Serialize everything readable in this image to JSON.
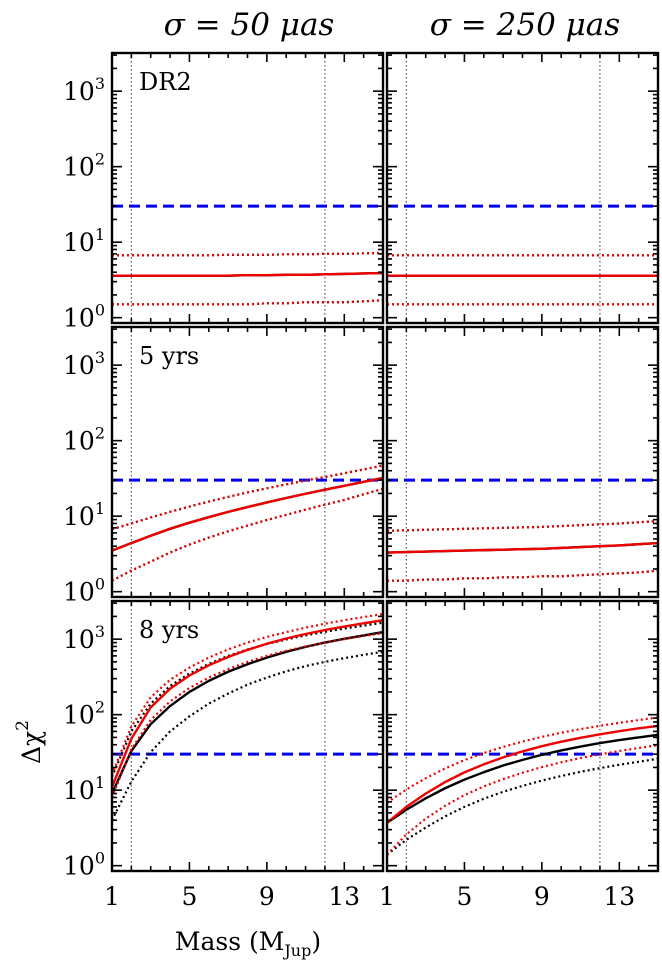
{
  "column_titles": [
    "σ = 50 μas",
    "σ = 250 μas"
  ],
  "xlabel": "Mass (M",
  "xlabel_sub": "Jup",
  "xlabel_close": ")",
  "ylabel": "Δχ",
  "ylabel_sup": "2",
  "chart_data": {
    "type": "line",
    "layout": "3x2 grid of panels sharing axes",
    "x_scale": "linear",
    "y_scale": "log",
    "xlim": [
      1,
      15
    ],
    "ylim": [
      0.85,
      3200
    ],
    "xticks": [
      1,
      5,
      9,
      13
    ],
    "xtick_labels": [
      "1",
      "5",
      "9",
      "13"
    ],
    "yticks": [
      1,
      10,
      100,
      1000
    ],
    "ytick_labels": [
      "10",
      "10",
      "10",
      "10"
    ],
    "ytick_exponents": [
      "0",
      "1",
      "2",
      "3"
    ],
    "threshold": {
      "y": 30,
      "color": "#0000ee",
      "style": "dashed"
    },
    "vlines": {
      "x": [
        2,
        12
      ],
      "color": "#555555",
      "style": "dotted"
    },
    "colors": {
      "black_series": "#000000",
      "red_series": "#ee0000"
    },
    "x": [
      1,
      2,
      3,
      4,
      5,
      6,
      7,
      8,
      9,
      10,
      11,
      12,
      13,
      14,
      15
    ],
    "panels": [
      {
        "row": 0,
        "col": 0,
        "label": "DR2",
        "black": {
          "median": [
            3.6,
            3.6,
            3.6,
            3.6,
            3.6,
            3.6,
            3.6,
            3.65,
            3.65,
            3.7,
            3.7,
            3.75,
            3.8,
            3.85,
            3.9
          ],
          "lower": [
            1.5,
            1.5,
            1.5,
            1.5,
            1.5,
            1.5,
            1.5,
            1.5,
            1.55,
            1.55,
            1.6,
            1.6,
            1.6,
            1.65,
            1.7
          ],
          "upper": [
            6.7,
            6.7,
            6.7,
            6.7,
            6.7,
            6.7,
            6.8,
            6.8,
            6.8,
            6.9,
            6.9,
            7.0,
            7.0,
            7.1,
            7.2
          ]
        },
        "red": {
          "median": [
            3.6,
            3.6,
            3.6,
            3.6,
            3.6,
            3.6,
            3.6,
            3.65,
            3.65,
            3.7,
            3.7,
            3.75,
            3.8,
            3.85,
            3.9
          ],
          "lower": [
            1.5,
            1.5,
            1.5,
            1.5,
            1.5,
            1.5,
            1.5,
            1.5,
            1.55,
            1.55,
            1.6,
            1.6,
            1.6,
            1.65,
            1.7
          ],
          "upper": [
            6.7,
            6.7,
            6.7,
            6.7,
            6.7,
            6.7,
            6.8,
            6.8,
            6.8,
            6.9,
            6.9,
            7.0,
            7.0,
            7.1,
            7.2
          ]
        }
      },
      {
        "row": 0,
        "col": 1,
        "label": "",
        "black": {
          "median": [
            3.6,
            3.6,
            3.6,
            3.6,
            3.6,
            3.6,
            3.6,
            3.6,
            3.6,
            3.6,
            3.6,
            3.6,
            3.6,
            3.6,
            3.6
          ],
          "lower": [
            1.5,
            1.5,
            1.5,
            1.5,
            1.5,
            1.5,
            1.5,
            1.5,
            1.5,
            1.5,
            1.5,
            1.5,
            1.5,
            1.5,
            1.5
          ],
          "upper": [
            6.7,
            6.7,
            6.7,
            6.7,
            6.7,
            6.7,
            6.7,
            6.7,
            6.7,
            6.7,
            6.7,
            6.7,
            6.7,
            6.7,
            6.7
          ]
        },
        "red": {
          "median": [
            3.6,
            3.6,
            3.6,
            3.6,
            3.6,
            3.6,
            3.6,
            3.6,
            3.6,
            3.6,
            3.6,
            3.6,
            3.6,
            3.6,
            3.6
          ],
          "lower": [
            1.5,
            1.5,
            1.5,
            1.5,
            1.5,
            1.5,
            1.5,
            1.5,
            1.5,
            1.5,
            1.5,
            1.5,
            1.5,
            1.5,
            1.5
          ],
          "upper": [
            6.7,
            6.7,
            6.7,
            6.7,
            6.7,
            6.7,
            6.7,
            6.7,
            6.7,
            6.7,
            6.7,
            6.7,
            6.7,
            6.7,
            6.7
          ]
        }
      },
      {
        "row": 1,
        "col": 0,
        "label": "5 yrs",
        "black": {
          "median": [
            3.5,
            4.4,
            5.5,
            6.8,
            8.2,
            9.7,
            11.4,
            13.2,
            15.2,
            17.4,
            19.8,
            22.4,
            25.2,
            28.5,
            32
          ],
          "lower": [
            1.4,
            1.9,
            2.5,
            3.3,
            4.2,
            5.2,
            6.3,
            7.5,
            8.9,
            10.4,
            12.2,
            14.2,
            16.4,
            19.5,
            23
          ],
          "upper": [
            6.7,
            8.0,
            9.6,
            11.4,
            13.4,
            15.6,
            18.0,
            20.6,
            23.4,
            26.4,
            29.6,
            33.0,
            37.0,
            41.5,
            47
          ]
        },
        "red": {
          "median": [
            3.5,
            4.4,
            5.5,
            6.8,
            8.2,
            9.7,
            11.4,
            13.2,
            15.2,
            17.4,
            19.8,
            22.4,
            25.2,
            28.5,
            32
          ],
          "lower": [
            1.4,
            1.9,
            2.5,
            3.3,
            4.2,
            5.2,
            6.3,
            7.5,
            8.9,
            10.4,
            12.2,
            14.2,
            16.4,
            19.5,
            23
          ],
          "upper": [
            6.7,
            8.0,
            9.6,
            11.4,
            13.4,
            15.6,
            18.0,
            20.6,
            23.4,
            26.4,
            29.6,
            33.0,
            37.0,
            41.5,
            47
          ]
        }
      },
      {
        "row": 1,
        "col": 1,
        "label": "",
        "black": {
          "median": [
            3.3,
            3.35,
            3.4,
            3.45,
            3.5,
            3.55,
            3.6,
            3.65,
            3.7,
            3.8,
            3.9,
            4.0,
            4.1,
            4.25,
            4.4
          ],
          "lower": [
            1.4,
            1.4,
            1.45,
            1.45,
            1.5,
            1.5,
            1.55,
            1.55,
            1.6,
            1.6,
            1.65,
            1.7,
            1.75,
            1.8,
            1.9
          ],
          "upper": [
            6.4,
            6.5,
            6.6,
            6.7,
            6.8,
            6.9,
            7.0,
            7.1,
            7.2,
            7.4,
            7.6,
            7.8,
            8.0,
            8.3,
            8.6
          ]
        },
        "red": {
          "median": [
            3.3,
            3.35,
            3.4,
            3.45,
            3.5,
            3.55,
            3.6,
            3.65,
            3.7,
            3.8,
            3.9,
            4.0,
            4.1,
            4.25,
            4.4
          ],
          "lower": [
            1.4,
            1.4,
            1.45,
            1.45,
            1.5,
            1.5,
            1.55,
            1.55,
            1.6,
            1.6,
            1.65,
            1.7,
            1.75,
            1.8,
            1.9
          ],
          "upper": [
            6.4,
            6.5,
            6.6,
            6.7,
            6.8,
            6.9,
            7.0,
            7.1,
            7.2,
            7.4,
            7.6,
            7.8,
            8.0,
            8.3,
            8.6
          ]
        }
      },
      {
        "row": 2,
        "col": 0,
        "label": "8 yrs",
        "black": {
          "median": [
            9,
            33,
            75,
            130,
            200,
            280,
            370,
            465,
            570,
            680,
            790,
            900,
            1010,
            1120,
            1240
          ],
          "lower": [
            4,
            13,
            32,
            60,
            95,
            140,
            190,
            250,
            310,
            375,
            440,
            500,
            560,
            620,
            680
          ],
          "upper": [
            15,
            60,
            140,
            240,
            350,
            470,
            600,
            730,
            860,
            990,
            1120,
            1250,
            1380,
            1510,
            1650
          ]
        },
        "red": {
          "median": [
            11,
            48,
            125,
            220,
            330,
            450,
            580,
            720,
            870,
            1020,
            1170,
            1320,
            1470,
            1620,
            1780
          ],
          "lower": [
            8,
            35,
            85,
            150,
            225,
            310,
            400,
            500,
            600,
            700,
            800,
            900,
            1000,
            1100,
            1200
          ],
          "upper": [
            16,
            70,
            170,
            290,
            420,
            570,
            730,
            900,
            1070,
            1240,
            1420,
            1600,
            1780,
            1960,
            2150
          ]
        }
      },
      {
        "row": 2,
        "col": 1,
        "label": "",
        "black": {
          "median": [
            3.7,
            5.5,
            7.8,
            10.6,
            13.8,
            17.3,
            21.2,
            25.2,
            29.4,
            33.6,
            37.8,
            42.0,
            46.0,
            50.0,
            54
          ],
          "lower": [
            1.4,
            2.2,
            3.2,
            4.5,
            6.0,
            7.7,
            9.5,
            11.4,
            13.4,
            15.4,
            17.5,
            19.6,
            21.7,
            23.8,
            26
          ]
        },
        "red": {
          "median": [
            3.7,
            6.0,
            9.0,
            12.8,
            17.2,
            22.0,
            27.2,
            32.6,
            38.2,
            43.8,
            49.4,
            55.0,
            60.5,
            66.0,
            71
          ],
          "lower": [
            1.4,
            2.6,
            4.2,
            6.2,
            8.6,
            11.2,
            14.0,
            17.0,
            20.2,
            23.4,
            26.6,
            29.8,
            33.0,
            36.2,
            39.5
          ],
          "upper": [
            6.8,
            10.2,
            14.4,
            19.4,
            25.0,
            31.0,
            37.4,
            44.0,
            50.8,
            57.6,
            64.4,
            71.2,
            78.0,
            84.8,
            92
          ]
        }
      }
    ]
  }
}
